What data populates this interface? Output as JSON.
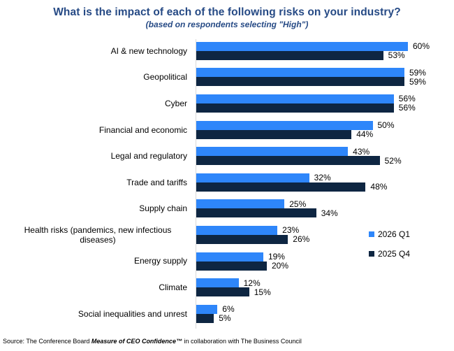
{
  "header": {
    "title": "What is the impact of each of the following risks on your industry?",
    "subtitle": "(based on respondents selecting \"High\")"
  },
  "chart_data": {
    "type": "bar",
    "orientation": "horizontal",
    "title": "What is the impact of each of the following risks on your industry?",
    "subtitle": "(based on respondents selecting \"High\")",
    "categories": [
      "AI & new technology",
      "Geopolitical",
      "Cyber",
      "Financial and economic",
      "Legal and regulatory",
      "Trade and tariffs",
      "Supply chain",
      "Health risks (pandemics, new infectious diseases)",
      "Energy supply",
      "Climate",
      "Social inequalities and unrest"
    ],
    "series": [
      {
        "name": "2026 Q1",
        "color": "#2E86FA",
        "values": [
          60,
          59,
          56,
          50,
          43,
          32,
          25,
          23,
          19,
          12,
          6
        ]
      },
      {
        "name": "2025 Q4",
        "color": "#0E2642",
        "values": [
          53,
          59,
          56,
          44,
          52,
          48,
          34,
          26,
          20,
          15,
          5
        ]
      }
    ],
    "value_suffix": "%",
    "xlim": [
      0,
      65
    ],
    "grid": false,
    "legend_position": "right-middle",
    "data_labels": true
  },
  "legend": {
    "items": [
      {
        "label": "2026 Q1",
        "color": "#2E86FA"
      },
      {
        "label": "2025 Q4",
        "color": "#0E2642"
      }
    ]
  },
  "footer": {
    "source_prefix": "Source: The Conference Board ",
    "source_brand": "Measure of CEO Confidence",
    "source_tm": "™",
    "source_suffix": " in collaboration with The Business Council"
  },
  "colors": {
    "title_text": "#264A85",
    "series_2026_q1": "#2E86FA",
    "series_2025_q4": "#0E2642",
    "axis_line": "#D9D9D9",
    "label_text": "#000000"
  }
}
